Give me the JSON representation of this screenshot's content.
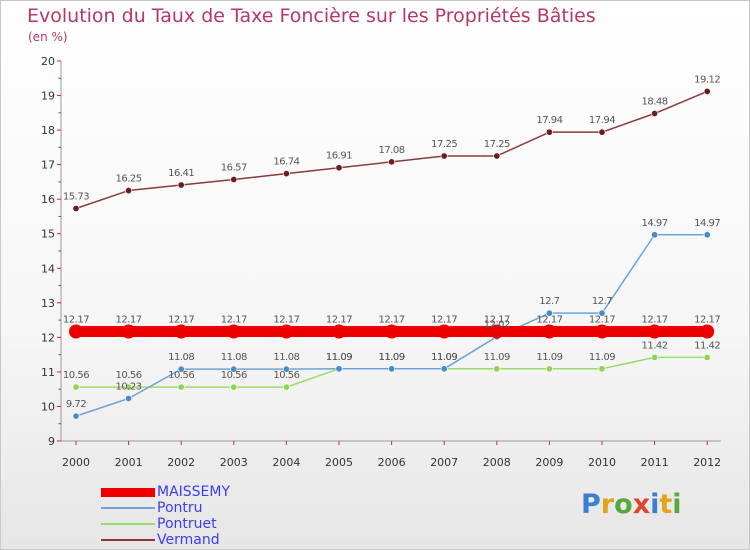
{
  "chart_data": {
    "type": "line",
    "title": "Evolution du Taux de Taxe Foncière sur les Propriétés Bâties",
    "subtitle": "(en %)",
    "xlabel": "",
    "ylabel": "",
    "ylim": [
      9,
      20
    ],
    "yticks": [
      "9",
      "10",
      "11",
      "12",
      "13",
      "14",
      "15",
      "16",
      "17",
      "18",
      "19",
      "20"
    ],
    "x": [
      "2000",
      "2001",
      "2002",
      "2003",
      "2004",
      "2005",
      "2006",
      "2007",
      "2008",
      "2009",
      "2010",
      "2011",
      "2012"
    ],
    "grid": false,
    "legend_position": "bottom-left",
    "series": [
      {
        "name": "MAISSEMY",
        "color": "#ee0000",
        "values": [
          12.17,
          12.17,
          12.17,
          12.17,
          12.17,
          12.17,
          12.17,
          12.17,
          12.17,
          12.17,
          12.17,
          12.17,
          12.17
        ],
        "labels": [
          "12.17",
          "12.17",
          "12.17",
          "12.17",
          "12.17",
          "12.17",
          "12.17",
          "12.17",
          "12.17",
          "12.17",
          "12.17",
          "12.17",
          "12.17"
        ]
      },
      {
        "name": "Pontru",
        "color": "#6ea3d4",
        "values": [
          9.72,
          10.23,
          11.08,
          11.08,
          11.08,
          11.09,
          11.09,
          11.09,
          12.02,
          12.7,
          12.7,
          14.97,
          14.97
        ],
        "labels": [
          "9.72",
          "10.23",
          "11.08",
          "11.08",
          "11.08",
          "11.09",
          "11.09",
          "11.09",
          "12.02",
          "12.7",
          "12.7",
          "14.97",
          "14.97"
        ]
      },
      {
        "name": "Pontruet",
        "color": "#99dd66",
        "values": [
          10.56,
          10.56,
          10.56,
          10.56,
          10.56,
          11.09,
          11.09,
          11.09,
          11.09,
          11.09,
          11.09,
          11.42,
          11.42
        ],
        "labels": [
          "10.56",
          "10.56",
          "10.56",
          "10.56",
          "10.56",
          "11.09",
          "11.09",
          "11.09",
          "11.09",
          "11.09",
          "11.09",
          "11.42",
          "11.42"
        ]
      },
      {
        "name": "Vermand",
        "color": "#8b3a3a",
        "values": [
          15.73,
          16.25,
          16.41,
          16.57,
          16.74,
          16.91,
          17.08,
          17.25,
          17.25,
          17.94,
          17.94,
          18.48,
          19.12
        ],
        "labels": [
          "15.73",
          "16.25",
          "16.41",
          "16.57",
          "16.74",
          "16.91",
          "17.08",
          "17.25",
          "17.25",
          "17.94",
          "17.94",
          "18.48",
          "19.12"
        ]
      }
    ]
  },
  "logo": {
    "text": "Proxiti",
    "colors": [
      "#3a7fd0",
      "#e7a21c",
      "#55a83a",
      "#e0462e",
      "#3a7fd0",
      "#e7a21c",
      "#55a83a"
    ]
  }
}
